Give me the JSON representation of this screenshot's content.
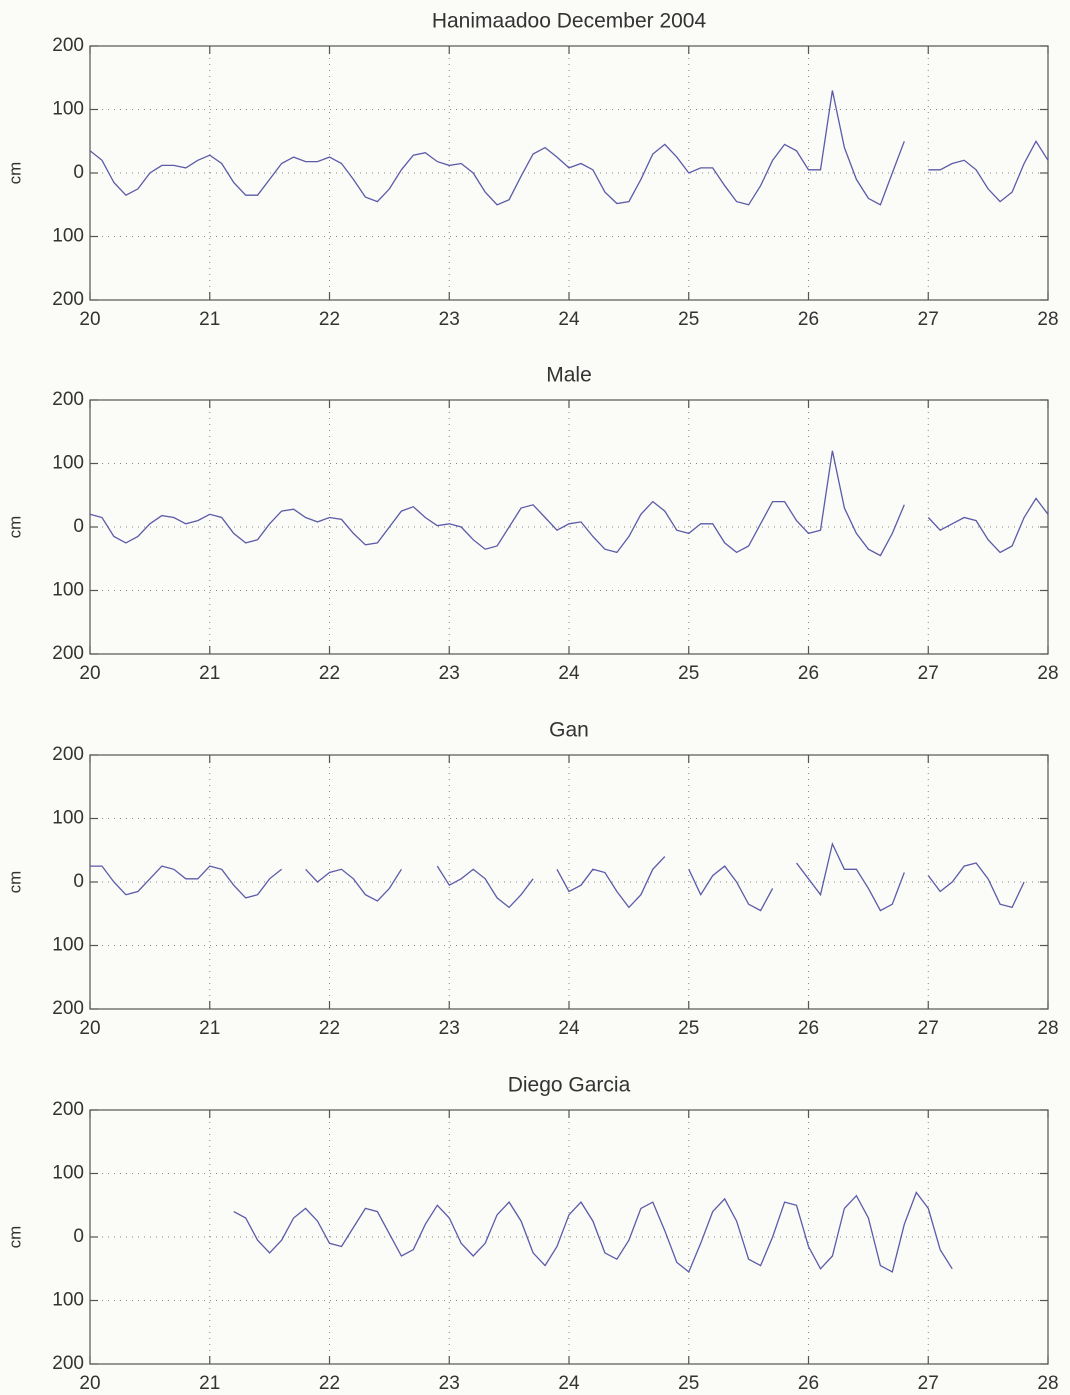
{
  "chart_data": [
    {
      "type": "line",
      "title": "Hanimaadoo December 2004",
      "ylabel": "cm",
      "color": "#5b5ba8",
      "grid": true,
      "xlim": [
        20,
        28
      ],
      "xticks": [
        20,
        21,
        22,
        23,
        24,
        25,
        26,
        27,
        28
      ],
      "ylim": [
        -200,
        200
      ],
      "yticks": [
        {
          "value": -200,
          "label": "200"
        },
        {
          "value": -100,
          "label": "100"
        },
        0,
        100,
        200
      ],
      "x": [
        20.0,
        20.1,
        20.2,
        20.3,
        20.4,
        20.5,
        20.6,
        20.7,
        20.8,
        20.9,
        21.0,
        21.1,
        21.2,
        21.3,
        21.4,
        21.5,
        21.6,
        21.7,
        21.8,
        21.9,
        22.0,
        22.1,
        22.2,
        22.3,
        22.4,
        22.5,
        22.6,
        22.7,
        22.8,
        22.9,
        23.0,
        23.1,
        23.2,
        23.3,
        23.4,
        23.5,
        23.6,
        23.7,
        23.8,
        23.9,
        24.0,
        24.1,
        24.2,
        24.3,
        24.4,
        24.5,
        24.6,
        24.7,
        24.8,
        24.9,
        25.0,
        25.1,
        25.2,
        25.3,
        25.4,
        25.5,
        25.6,
        25.7,
        25.8,
        25.9,
        26.0,
        26.1,
        26.2,
        26.3,
        26.4,
        26.5,
        26.6,
        26.7,
        26.8,
        26.9,
        27.0,
        27.1,
        27.2,
        27.3,
        27.4,
        27.5,
        27.6,
        27.7,
        27.8,
        27.9,
        28.0
      ],
      "values": [
        35,
        20,
        -15,
        -35,
        -25,
        0,
        12,
        12,
        8,
        20,
        28,
        15,
        -15,
        -35,
        -35,
        -10,
        15,
        25,
        18,
        18,
        25,
        15,
        -10,
        -38,
        -45,
        -25,
        5,
        28,
        32,
        18,
        12,
        15,
        0,
        -30,
        -50,
        -42,
        -5,
        30,
        40,
        25,
        8,
        15,
        5,
        -30,
        -48,
        -45,
        -10,
        30,
        45,
        25,
        0,
        8,
        8,
        -20,
        -45,
        -50,
        -20,
        20,
        45,
        35,
        5,
        5,
        130,
        40,
        -10,
        -40,
        -50,
        0,
        50,
        null,
        5,
        5,
        15,
        20,
        5,
        -25,
        -45,
        -30,
        15,
        50,
        20
      ]
    },
    {
      "type": "line",
      "title": "Male",
      "ylabel": "cm",
      "color": "#5b5ba8",
      "grid": true,
      "xlim": [
        20,
        28
      ],
      "xticks": [
        20,
        21,
        22,
        23,
        24,
        25,
        26,
        27,
        28
      ],
      "ylim": [
        -200,
        200
      ],
      "yticks": [
        {
          "value": -200,
          "label": "200"
        },
        {
          "value": -100,
          "label": "100"
        },
        0,
        100,
        200
      ],
      "x": [
        20.0,
        20.1,
        20.2,
        20.3,
        20.4,
        20.5,
        20.6,
        20.7,
        20.8,
        20.9,
        21.0,
        21.1,
        21.2,
        21.3,
        21.4,
        21.5,
        21.6,
        21.7,
        21.8,
        21.9,
        22.0,
        22.1,
        22.2,
        22.3,
        22.4,
        22.5,
        22.6,
        22.7,
        22.8,
        22.9,
        23.0,
        23.1,
        23.2,
        23.3,
        23.4,
        23.5,
        23.6,
        23.7,
        23.8,
        23.9,
        24.0,
        24.1,
        24.2,
        24.3,
        24.4,
        24.5,
        24.6,
        24.7,
        24.8,
        24.9,
        25.0,
        25.1,
        25.2,
        25.3,
        25.4,
        25.5,
        25.6,
        25.7,
        25.8,
        25.9,
        26.0,
        26.1,
        26.2,
        26.3,
        26.4,
        26.5,
        26.6,
        26.7,
        26.8,
        26.9,
        27.0,
        27.1,
        27.2,
        27.3,
        27.4,
        27.5,
        27.6,
        27.7,
        27.8,
        27.9,
        28.0
      ],
      "values": [
        20,
        15,
        -15,
        -25,
        -15,
        5,
        18,
        15,
        5,
        10,
        20,
        15,
        -10,
        -25,
        -20,
        5,
        25,
        28,
        15,
        8,
        15,
        12,
        -10,
        -28,
        -25,
        0,
        25,
        32,
        15,
        2,
        5,
        0,
        -20,
        -35,
        -30,
        0,
        30,
        35,
        15,
        -5,
        5,
        8,
        -15,
        -35,
        -40,
        -15,
        20,
        40,
        25,
        -5,
        -10,
        5,
        5,
        -25,
        -40,
        -30,
        5,
        40,
        40,
        10,
        -10,
        -5,
        120,
        30,
        -10,
        -35,
        -45,
        -10,
        35,
        null,
        15,
        -5,
        5,
        15,
        10,
        -20,
        -40,
        -30,
        15,
        45,
        20
      ]
    },
    {
      "type": "line",
      "title": "Gan",
      "ylabel": "cm",
      "color": "#5b5ba8",
      "grid": true,
      "xlim": [
        20,
        28
      ],
      "xticks": [
        20,
        21,
        22,
        23,
        24,
        25,
        26,
        27,
        28
      ],
      "ylim": [
        -200,
        200
      ],
      "yticks": [
        {
          "value": -200,
          "label": "200"
        },
        {
          "value": -100,
          "label": "100"
        },
        0,
        100,
        200
      ],
      "x": [
        20.0,
        20.1,
        20.2,
        20.3,
        20.4,
        20.5,
        20.6,
        20.7,
        20.8,
        20.9,
        21.0,
        21.1,
        21.2,
        21.3,
        21.4,
        21.5,
        21.6,
        21.7,
        21.8,
        21.9,
        22.0,
        22.1,
        22.2,
        22.3,
        22.4,
        22.5,
        22.6,
        22.7,
        22.8,
        22.9,
        23.0,
        23.1,
        23.2,
        23.3,
        23.4,
        23.5,
        23.6,
        23.7,
        23.8,
        23.9,
        24.0,
        24.1,
        24.2,
        24.3,
        24.4,
        24.5,
        24.6,
        24.7,
        24.8,
        24.9,
        25.0,
        25.1,
        25.2,
        25.3,
        25.4,
        25.5,
        25.6,
        25.7,
        25.8,
        25.9,
        26.0,
        26.1,
        26.2,
        26.3,
        26.4,
        26.5,
        26.6,
        26.7,
        26.8,
        26.9,
        27.0,
        27.1,
        27.2,
        27.3,
        27.4,
        27.5,
        27.6,
        27.7,
        27.8,
        27.9,
        28.0
      ],
      "values": [
        25,
        25,
        0,
        -20,
        -15,
        5,
        25,
        20,
        5,
        5,
        25,
        20,
        -5,
        -25,
        -20,
        5,
        20,
        null,
        20,
        0,
        15,
        20,
        5,
        -20,
        -30,
        -10,
        20,
        null,
        null,
        25,
        -5,
        5,
        20,
        5,
        -25,
        -40,
        -20,
        5,
        null,
        20,
        -15,
        -5,
        20,
        15,
        -15,
        -40,
        -20,
        20,
        40,
        null,
        20,
        -20,
        10,
        25,
        0,
        -35,
        -45,
        -10,
        null,
        30,
        5,
        -20,
        60,
        20,
        20,
        -10,
        -45,
        -35,
        15,
        null,
        10,
        -15,
        0,
        25,
        30,
        5,
        -35,
        -40,
        0,
        null,
        40
      ]
    },
    {
      "type": "line",
      "title": "Diego Garcia",
      "ylabel": "cm",
      "color": "#5b5ba8",
      "grid": true,
      "xlim": [
        20,
        28
      ],
      "xticks": [
        20,
        21,
        22,
        23,
        24,
        25,
        26,
        27,
        28
      ],
      "ylim": [
        -200,
        200
      ],
      "yticks": [
        {
          "value": -200,
          "label": "200"
        },
        {
          "value": -100,
          "label": "100"
        },
        0,
        100,
        200
      ],
      "x": [
        20.0,
        20.1,
        20.2,
        20.3,
        20.4,
        20.5,
        20.6,
        20.7,
        20.8,
        20.9,
        21.0,
        21.1,
        21.2,
        21.3,
        21.4,
        21.5,
        21.6,
        21.7,
        21.8,
        21.9,
        22.0,
        22.1,
        22.2,
        22.3,
        22.4,
        22.5,
        22.6,
        22.7,
        22.8,
        22.9,
        23.0,
        23.1,
        23.2,
        23.3,
        23.4,
        23.5,
        23.6,
        23.7,
        23.8,
        23.9,
        24.0,
        24.1,
        24.2,
        24.3,
        24.4,
        24.5,
        24.6,
        24.7,
        24.8,
        24.9,
        25.0,
        25.1,
        25.2,
        25.3,
        25.4,
        25.5,
        25.6,
        25.7,
        25.8,
        25.9,
        26.0,
        26.1,
        26.2,
        26.3,
        26.4,
        26.5,
        26.6,
        26.7,
        26.8,
        26.9,
        27.0,
        27.1,
        27.2,
        27.3,
        27.4,
        27.5,
        27.6,
        27.7,
        27.8,
        27.9,
        28.0
      ],
      "values": [
        null,
        null,
        null,
        null,
        null,
        null,
        null,
        null,
        null,
        null,
        null,
        null,
        40,
        30,
        -5,
        -25,
        -5,
        30,
        45,
        25,
        -10,
        -15,
        15,
        45,
        40,
        5,
        -30,
        -20,
        20,
        50,
        30,
        -10,
        -30,
        -10,
        35,
        55,
        25,
        -25,
        -45,
        -15,
        35,
        55,
        25,
        -25,
        -35,
        -5,
        45,
        55,
        10,
        -40,
        -55,
        -10,
        40,
        60,
        25,
        -35,
        -45,
        0,
        55,
        50,
        -15,
        -50,
        -30,
        45,
        65,
        30,
        -45,
        -55,
        20,
        70,
        45,
        -20,
        -50,
        null,
        null,
        null,
        null,
        null,
        null,
        null,
        null
      ]
    }
  ]
}
